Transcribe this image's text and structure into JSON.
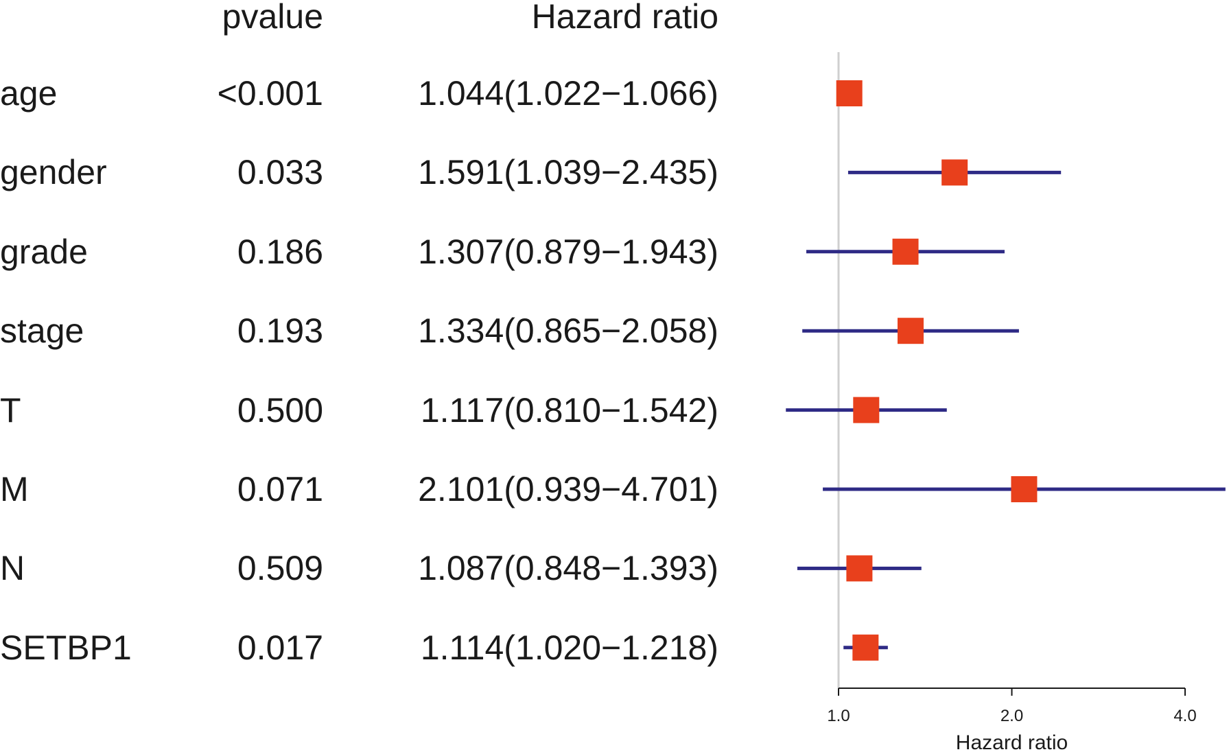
{
  "headers": {
    "pvalue": "pvalue",
    "hazard_ratio": "Hazard ratio"
  },
  "colors": {
    "ci_line": "#2e2a85",
    "point": "#e8401c",
    "reference_line": "#cfcfcf",
    "axis": "#1a1a1a"
  },
  "chart_data": {
    "type": "forest",
    "xlabel": "Hazard ratio",
    "x_scale": "log2",
    "xlim": [
      1.0,
      4.0
    ],
    "reference_value": 1.0,
    "ticks": [
      {
        "value": 1.0,
        "label": "1.0"
      },
      {
        "value": 2.0,
        "label": "2.0"
      },
      {
        "value": 4.0,
        "label": "4.0"
      }
    ],
    "rows": [
      {
        "label": "age",
        "pvalue": "<0.001",
        "hr_text": "1.044(1.022−1.066)",
        "hr": 1.044,
        "lower": 1.022,
        "upper": 1.066
      },
      {
        "label": "gender",
        "pvalue": "0.033",
        "hr_text": "1.591(1.039−2.435)",
        "hr": 1.591,
        "lower": 1.039,
        "upper": 2.435
      },
      {
        "label": "grade",
        "pvalue": "0.186",
        "hr_text": "1.307(0.879−1.943)",
        "hr": 1.307,
        "lower": 0.879,
        "upper": 1.943
      },
      {
        "label": "stage",
        "pvalue": "0.193",
        "hr_text": "1.334(0.865−2.058)",
        "hr": 1.334,
        "lower": 0.865,
        "upper": 2.058
      },
      {
        "label": "T",
        "pvalue": "0.500",
        "hr_text": "1.117(0.810−1.542)",
        "hr": 1.117,
        "lower": 0.81,
        "upper": 1.542
      },
      {
        "label": "M",
        "pvalue": "0.071",
        "hr_text": "2.101(0.939−4.701)",
        "hr": 2.101,
        "lower": 0.939,
        "upper": 4.701
      },
      {
        "label": "N",
        "pvalue": "0.509",
        "hr_text": "1.087(0.848−1.393)",
        "hr": 1.087,
        "lower": 0.848,
        "upper": 1.393
      },
      {
        "label": "SETBP1",
        "pvalue": "0.017",
        "hr_text": "1.114(1.020−1.218)",
        "hr": 1.114,
        "lower": 1.02,
        "upper": 1.218
      }
    ]
  }
}
